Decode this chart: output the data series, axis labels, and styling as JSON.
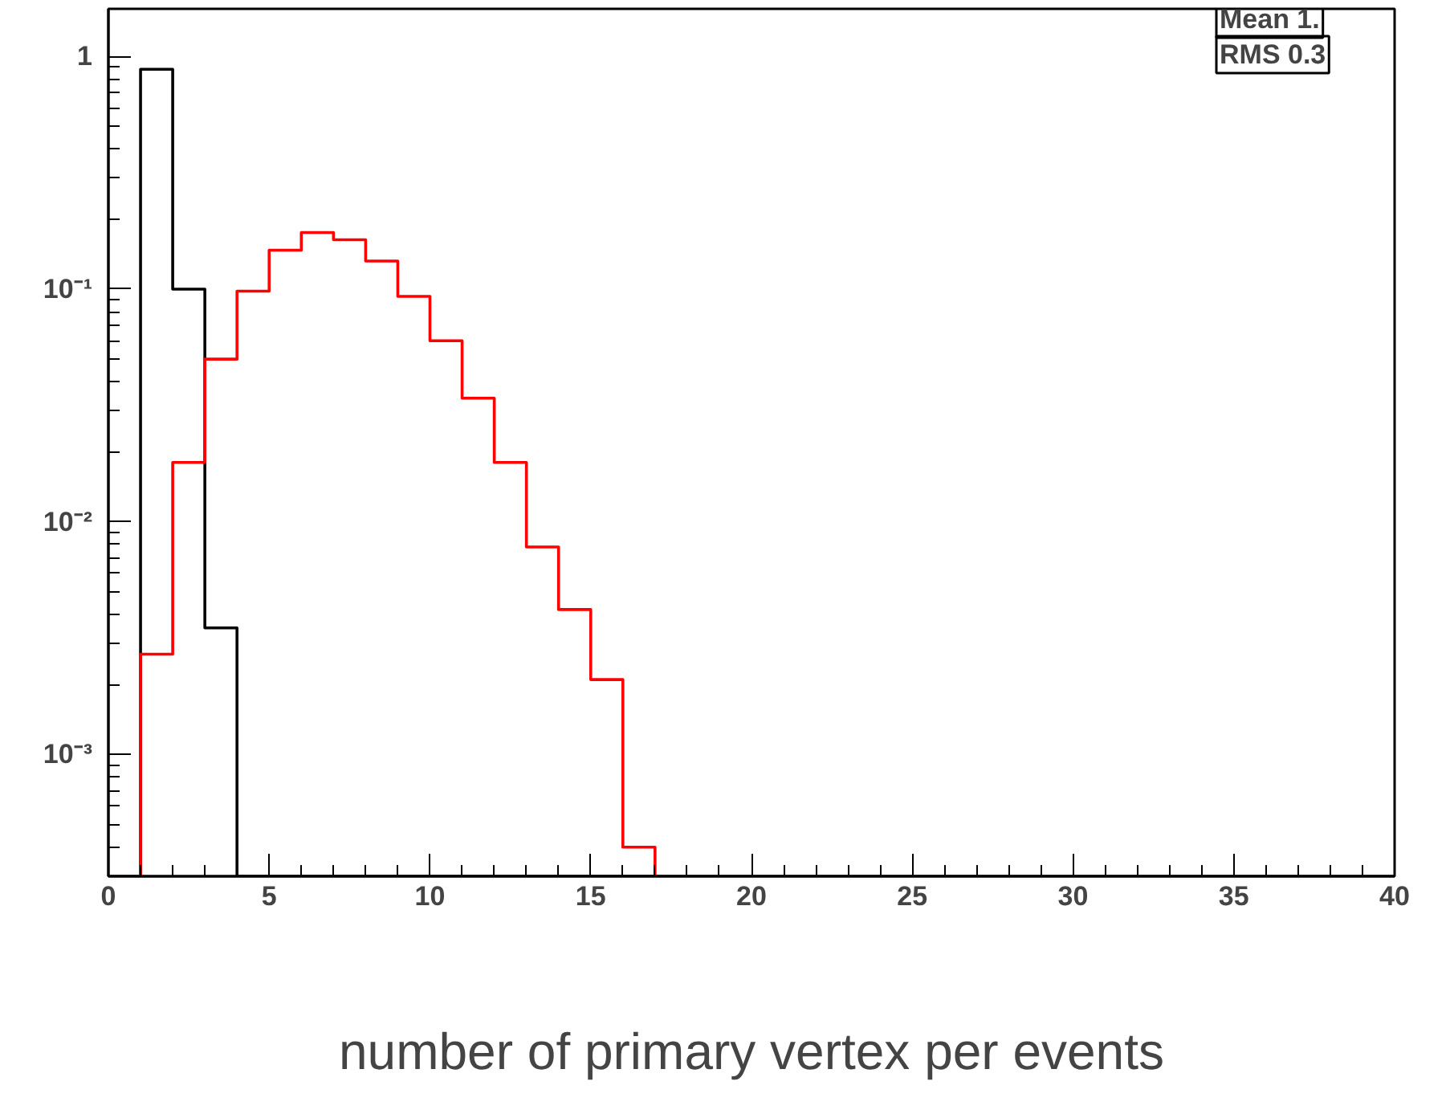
{
  "chart_data": {
    "type": "histogram",
    "xlabel": "number of primary vertex per events",
    "bins": [
      0,
      1,
      2,
      3,
      4,
      5,
      6,
      7,
      8,
      9,
      10,
      11,
      12,
      13,
      14,
      15,
      16,
      17,
      18,
      19,
      20,
      21,
      22,
      23,
      24,
      25,
      26,
      27,
      28,
      29,
      30,
      31,
      32,
      33,
      34,
      35,
      36,
      37,
      38,
      39,
      40
    ],
    "series": [
      {
        "color": "#000000",
        "values": [
          null,
          0.88,
          0.1,
          0.0035,
          null,
          null,
          null,
          null,
          null,
          null,
          null,
          null,
          null,
          null,
          null,
          null,
          null,
          null,
          null,
          null,
          null,
          null,
          null,
          null,
          null,
          null,
          null,
          null,
          null,
          null,
          null,
          null,
          null,
          null,
          null,
          null,
          null,
          null,
          null,
          null
        ]
      },
      {
        "color": "#ff0000",
        "values": [
          null,
          0.0027,
          0.018,
          0.05,
          0.098,
          0.147,
          0.175,
          0.163,
          0.132,
          0.093,
          0.06,
          0.034,
          0.018,
          0.0078,
          0.0042,
          0.0021,
          0.0004,
          null,
          null,
          null,
          null,
          null,
          null,
          null,
          null,
          null,
          null,
          null,
          null,
          null,
          null,
          null,
          null,
          null,
          null,
          null,
          null,
          null,
          null,
          null
        ]
      }
    ],
    "log": "y",
    "xlim": [
      0,
      40
    ],
    "ylim": [
      0.0003,
      1.6
    ],
    "xticks": [
      0,
      5,
      10,
      15,
      20,
      25,
      30,
      35,
      40
    ],
    "yticks": [
      {
        "value": 0.001,
        "label": "10⁻³"
      },
      {
        "value": 0.01,
        "label": "10⁻²"
      },
      {
        "value": 0.1,
        "label": "10⁻¹"
      },
      1
    ],
    "grid": false,
    "annotations": [
      "Mean 1.",
      "RMS 0.3"
    ]
  }
}
